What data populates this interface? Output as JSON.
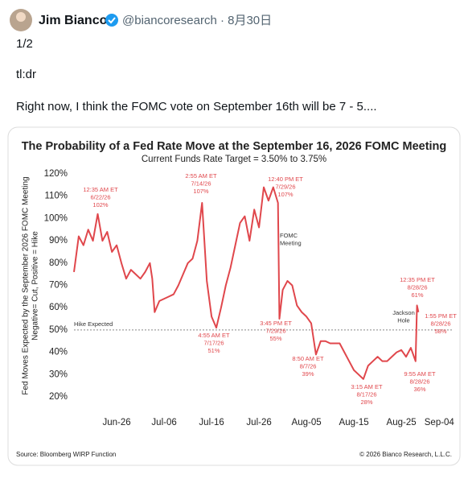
{
  "tweet": {
    "name": "Jim Bianco",
    "handle_date": "@biancoresearch · 8月30日",
    "lines": [
      "1/2",
      "tl:dr",
      "Right now, I think the FOMC vote on September 16th will be 7 - 5...."
    ]
  },
  "chart_data": {
    "type": "line",
    "title": "The Probability of a Fed Rate Move at the September 16, 2026 FOMC Meeting",
    "subtitle": "Current Funds Rate Target = 3.50% to 3.75%",
    "y_label": [
      "Fed Moves Expected by the September 2026 FOMC Meeting",
      "Negative= Cut, Positive = Hike"
    ],
    "source": "Source: Bloomberg WIRP Function",
    "copyright": "© 2026 Bianco Research, L.L.C.",
    "xlim": [
      168,
      248
    ],
    "ylim": [
      20,
      120
    ],
    "xticks": [
      {
        "value": 177,
        "label": "Jun-26"
      },
      {
        "value": 187,
        "label": "Jul-06"
      },
      {
        "value": 197,
        "label": "Jul-16"
      },
      {
        "value": 207,
        "label": "Jul-26"
      },
      {
        "value": 217,
        "label": "Aug-05"
      },
      {
        "value": 227,
        "label": "Aug-15"
      },
      {
        "value": 237,
        "label": "Aug-25"
      },
      {
        "value": 245,
        "label": "Sep-04"
      }
    ],
    "yticks": [
      {
        "value": 120,
        "label": "120%"
      },
      {
        "value": 110,
        "label": "110%"
      },
      {
        "value": 100,
        "label": "100%"
      },
      {
        "value": 90,
        "label": "90%"
      },
      {
        "value": 80,
        "label": "80%"
      },
      {
        "value": 70,
        "label": "70%"
      },
      {
        "value": 60,
        "label": "60%"
      },
      {
        "value": 50,
        "label": "50%"
      },
      {
        "value": 40,
        "label": "40%"
      },
      {
        "value": 30,
        "label": "30%"
      },
      {
        "value": 20,
        "label": "20%"
      }
    ],
    "hike_line": {
      "value": 50,
      "label": "Hike Expected"
    },
    "series": [
      {
        "color": "#e0474c",
        "x": [
          168,
          169,
          170,
          171,
          172,
          173,
          174,
          175,
          176,
          177,
          178,
          179,
          180,
          181,
          182,
          183,
          184,
          184.5,
          185,
          186,
          187,
          188,
          189,
          190,
          191,
          192,
          193,
          194,
          195,
          196,
          197,
          198,
          199,
          200,
          201,
          202,
          203,
          204,
          205,
          206,
          207,
          208,
          209,
          210,
          211,
          211.3,
          212,
          213,
          214,
          215,
          216,
          217,
          218,
          219,
          220,
          221,
          222,
          223,
          224,
          225,
          226,
          227,
          228,
          229,
          230,
          231,
          232,
          233,
          234,
          235,
          236,
          237,
          238,
          239,
          240,
          240.3,
          240.6
        ],
        "values": [
          76,
          92,
          88,
          95,
          90,
          102,
          90,
          94,
          85,
          88,
          80,
          73,
          77,
          75,
          73,
          76,
          80,
          73,
          58,
          63,
          64,
          65,
          66,
          70,
          75,
          80,
          82,
          90,
          107,
          72,
          56,
          51,
          60,
          70,
          78,
          88,
          98,
          101,
          90,
          104,
          96,
          114,
          108,
          114,
          107,
          55,
          68,
          72,
          70,
          61,
          58,
          56,
          53,
          39,
          45,
          45,
          44,
          44,
          44,
          40,
          36,
          32,
          30,
          28,
          34,
          36,
          38,
          36,
          36,
          38,
          40,
          41,
          38,
          42,
          36,
          61,
          58
        ]
      }
    ],
    "annotations": [
      {
        "lines": [
          "12:35 AM ET",
          "6/22/26",
          "102%"
        ],
        "color": "#e0474c"
      },
      {
        "lines": [
          "2:55 AM ET",
          "7/14/26",
          "107%"
        ],
        "color": "#e0474c"
      },
      {
        "lines": [
          "12:40 PM ET",
          "7/29/26",
          "107%"
        ],
        "color": "#e0474c"
      },
      {
        "lines": [
          "FOMC",
          "Meeting"
        ],
        "color": "#333333"
      },
      {
        "lines": [
          "4:55 AM ET",
          "7/17/26",
          "51%"
        ],
        "color": "#e0474c"
      },
      {
        "lines": [
          "3:45 PM ET",
          "7/29/26",
          "55%"
        ],
        "color": "#e0474c"
      },
      {
        "lines": [
          "8:50 AM ET",
          "8/7/26",
          "39%"
        ],
        "color": "#e0474c"
      },
      {
        "lines": [
          "3:15 AM ET",
          "8/17/26",
          "28%"
        ],
        "color": "#e0474c"
      },
      {
        "lines": [
          "9:55 AM ET",
          "8/28/26",
          "36%"
        ],
        "color": "#e0474c"
      },
      {
        "lines": [
          "12:35 PM ET",
          "8/28/26",
          "61%"
        ],
        "color": "#e0474c"
      },
      {
        "lines": [
          "1:55 PM ET",
          "8/28/26",
          "58%"
        ],
        "color": "#e0474c"
      },
      {
        "lines": [
          "Jackson",
          "Hole"
        ],
        "color": "#333333"
      }
    ]
  }
}
